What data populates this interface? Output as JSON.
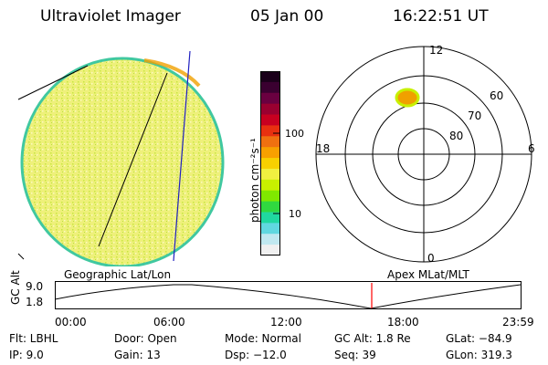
{
  "header": {
    "instrument": "Ultraviolet Imager",
    "date": "05 Jan 00",
    "time": "16:22:51 UT"
  },
  "colorbar": {
    "label": "photon cm⁻²s⁻¹",
    "ticks": [
      "100",
      "10"
    ],
    "colors_top_to_bottom": [
      "#1a001a",
      "#3a0030",
      "#6a0040",
      "#9a0030",
      "#c80020",
      "#e83010",
      "#f07010",
      "#f8a000",
      "#f8d000",
      "#f0f040",
      "#c8f000",
      "#80e800",
      "#30d840",
      "#20d8a0",
      "#60d8e0",
      "#c0e8f0",
      "#f0f0f0"
    ]
  },
  "polar": {
    "mlt_labels": {
      "top": "12",
      "left": "18",
      "right": "6",
      "bottom": "0"
    },
    "lat_labels": [
      "60",
      "70",
      "80"
    ]
  },
  "panel_labels": {
    "left": "Geographic Lat/Lon",
    "right": "Apex  MLat/MLT"
  },
  "timeline": {
    "ylabel": "GC Alt",
    "ytick_top": "9.0",
    "ytick_bottom": "1.8",
    "xticks": [
      "00:00",
      "06:00",
      "12:00",
      "18:00",
      "23:59"
    ],
    "marker_time": "16:22"
  },
  "status": {
    "flt": "Flt: LBHL",
    "ip": "IP:  9.0",
    "door": "Door: Open",
    "gain": "Gain: 13",
    "mode": "Mode: Normal",
    "dsp": "Dsp:  −12.0",
    "gcalt": "GC Alt: 1.8 Re",
    "seq": "Seq: 39",
    "glat": "GLat: −84.9",
    "glon": "GLon: 319.3"
  },
  "colors": {
    "earth_fill": "#e8f060",
    "earth_edge": "#30c0c0",
    "aurora": "#f0a000",
    "marker": "#ff0000",
    "meridian": "#2020c0"
  }
}
